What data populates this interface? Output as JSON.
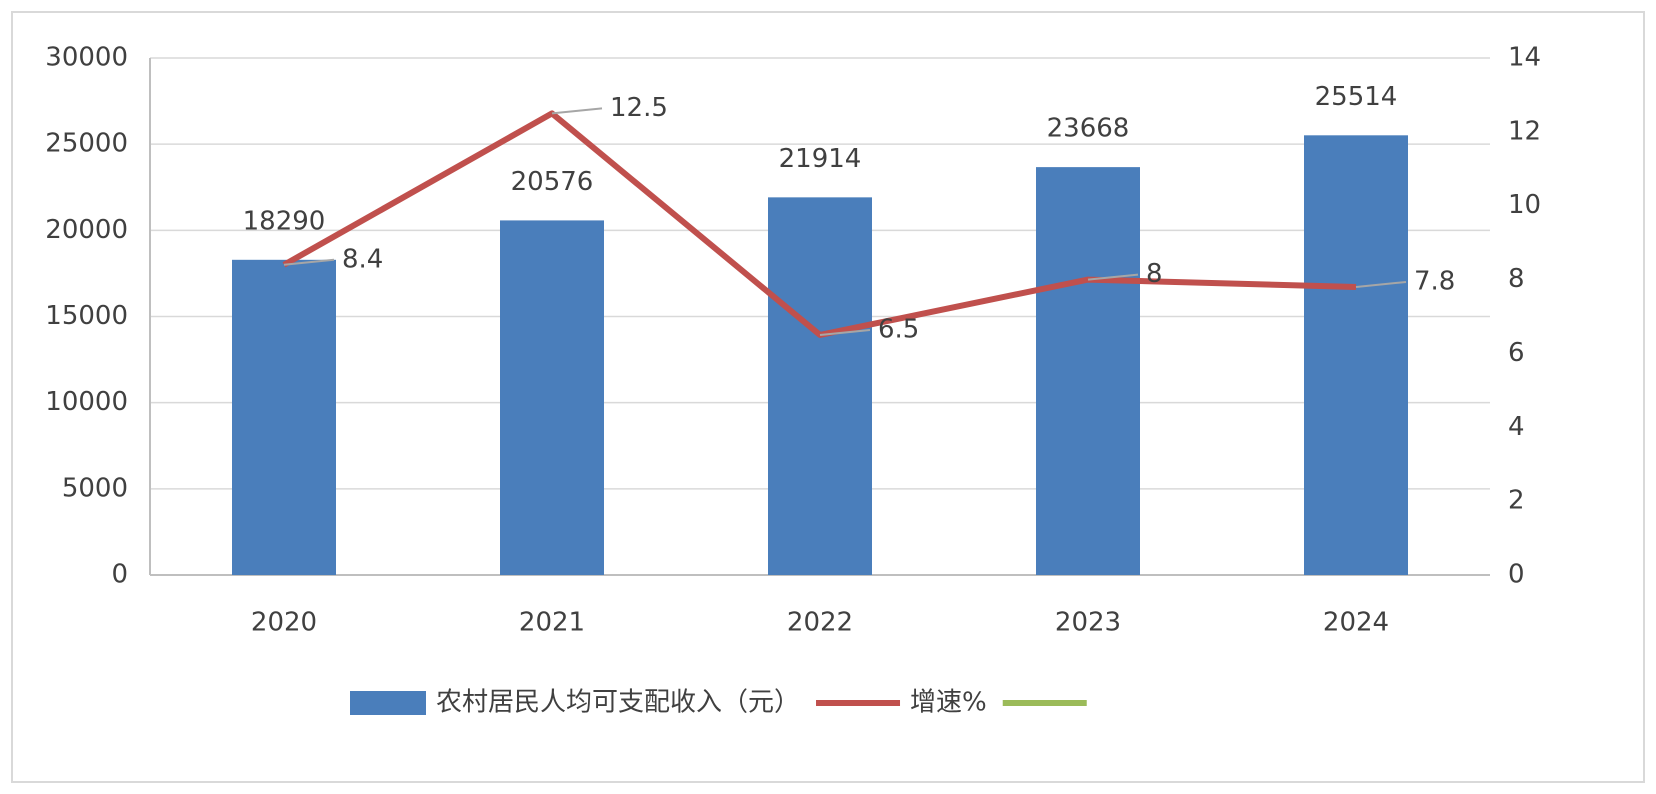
{
  "chart_data": {
    "type": "bar",
    "categories": [
      "2020",
      "2021",
      "2022",
      "2023",
      "2024"
    ],
    "series": [
      {
        "name": "农村居民人均可支配收入（元）",
        "type": "bar",
        "color": "#4a7ebb",
        "values": [
          18290,
          20576,
          21914,
          23668,
          25514
        ]
      },
      {
        "name": "增速%",
        "type": "line",
        "axis": "y2",
        "color": "#c0504d",
        "values": [
          8.4,
          12.5,
          6.5,
          8,
          7.8
        ]
      },
      {
        "name": null,
        "type": "line",
        "axis": "y2",
        "color": "#9bbb59",
        "values": [
          null,
          null,
          null,
          null,
          null
        ]
      }
    ],
    "ylim": [
      0,
      30000
    ],
    "yticks": [
      0,
      5000,
      10000,
      15000,
      20000,
      25000,
      30000
    ],
    "y2lim": [
      0,
      14
    ],
    "y2ticks": [
      0,
      2,
      4,
      6,
      8,
      10,
      12,
      14
    ],
    "grid": true,
    "legend": "bottom"
  }
}
